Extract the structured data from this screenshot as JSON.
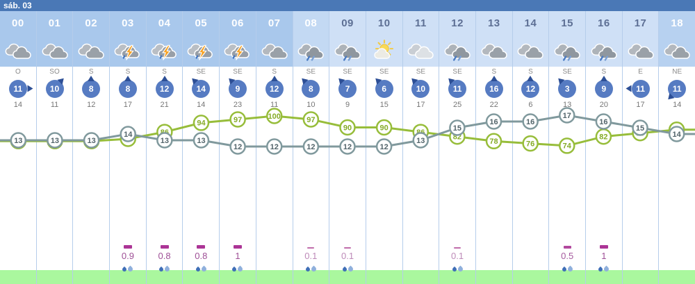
{
  "day_label": "sáb. 03",
  "colors": {
    "topbar": "#4a78b6",
    "col_dark": "#a9c8ec",
    "col_mid": "#c3d9f3",
    "col_light": "#cfe0f6",
    "col_dark2": "#b7d1f0",
    "hour_text_light_bg": "#5d6f94",
    "hour_text_dark_bg": "#ffffff",
    "wind_circle": "#567bc2",
    "probability_green": "#97bd3a",
    "temperature_gray": "#80999d",
    "precip_magenta": "#ac3596",
    "ground_green": "#aaf79e"
  },
  "columns": [
    {
      "hour": "00",
      "shade": "dark",
      "icon": "cloudy",
      "wind_dir": "O",
      "wind_speed": 11,
      "gust": 14,
      "precip": null
    },
    {
      "hour": "01",
      "shade": "dark",
      "icon": "cloudy",
      "wind_dir": "SO",
      "wind_speed": 10,
      "gust": 11,
      "precip": null
    },
    {
      "hour": "02",
      "shade": "dark",
      "icon": "cloudy",
      "wind_dir": "S",
      "wind_speed": 8,
      "gust": 12,
      "precip": null
    },
    {
      "hour": "03",
      "shade": "dark",
      "icon": "storm",
      "wind_dir": "S",
      "wind_speed": 8,
      "gust": 17,
      "precip": 0.9
    },
    {
      "hour": "04",
      "shade": "dark",
      "icon": "storm",
      "wind_dir": "S",
      "wind_speed": 12,
      "gust": 21,
      "precip": 0.8
    },
    {
      "hour": "05",
      "shade": "dark",
      "icon": "storm",
      "wind_dir": "SE",
      "wind_speed": 14,
      "gust": 14,
      "precip": 0.8
    },
    {
      "hour": "06",
      "shade": "dark",
      "icon": "storm",
      "wind_dir": "SE",
      "wind_speed": 9,
      "gust": 23,
      "precip": 1
    },
    {
      "hour": "07",
      "shade": "dark",
      "icon": "cloudy",
      "wind_dir": "S",
      "wind_speed": 12,
      "gust": 11,
      "precip": null
    },
    {
      "hour": "08",
      "shade": "mid",
      "icon": "rain",
      "wind_dir": "SE",
      "wind_speed": 8,
      "gust": 10,
      "precip": 0.1
    },
    {
      "hour": "09",
      "shade": "light",
      "icon": "rain",
      "wind_dir": "SE",
      "wind_speed": 7,
      "gust": 9,
      "precip": 0.1
    },
    {
      "hour": "10",
      "shade": "light",
      "icon": "sun-cloud",
      "wind_dir": "SE",
      "wind_speed": 6,
      "gust": 15,
      "precip": null
    },
    {
      "hour": "11",
      "shade": "light",
      "icon": "cloudy-light",
      "wind_dir": "SE",
      "wind_speed": 10,
      "gust": 17,
      "precip": null
    },
    {
      "hour": "12",
      "shade": "light",
      "icon": "rain",
      "wind_dir": "SE",
      "wind_speed": 11,
      "gust": 25,
      "precip": 0.1
    },
    {
      "hour": "13",
      "shade": "light",
      "icon": "cloudy",
      "wind_dir": "S",
      "wind_speed": 16,
      "gust": 22,
      "precip": null
    },
    {
      "hour": "14",
      "shade": "light",
      "icon": "cloudy",
      "wind_dir": "S",
      "wind_speed": 12,
      "gust": 6,
      "precip": null
    },
    {
      "hour": "15",
      "shade": "light",
      "icon": "rain",
      "wind_dir": "SE",
      "wind_speed": 3,
      "gust": 13,
      "precip": 0.5
    },
    {
      "hour": "16",
      "shade": "light",
      "icon": "rain",
      "wind_dir": "S",
      "wind_speed": 9,
      "gust": 20,
      "precip": 1
    },
    {
      "hour": "17",
      "shade": "light",
      "icon": "cloudy",
      "wind_dir": "E",
      "wind_speed": 11,
      "gust": 17,
      "precip": null
    },
    {
      "hour": "18",
      "shade": "dark2",
      "icon": "cloudy",
      "wind_dir": "NE",
      "wind_speed": 11,
      "gust": 14,
      "precip": null
    }
  ],
  "chart_data": {
    "type": "line",
    "x": [
      "00",
      "01",
      "02",
      "03",
      "04",
      "05",
      "06",
      "07",
      "08",
      "09",
      "10",
      "11",
      "12",
      "13",
      "14",
      "15",
      "16",
      "17",
      "18"
    ],
    "series": [
      {
        "name": "rain-probability-percent",
        "color": "#97bd3a",
        "values": [
          78,
          78,
          78,
          80,
          86,
          94,
          97,
          100,
          97,
          90,
          90,
          86,
          82,
          78,
          76,
          74,
          82,
          85,
          88
        ]
      },
      {
        "name": "temperature-celsius",
        "color": "#80999d",
        "values": [
          13,
          13,
          13,
          14,
          13,
          13,
          12,
          12,
          12,
          12,
          12,
          13,
          15,
          16,
          16,
          17,
          16,
          15,
          14
        ]
      }
    ],
    "legend": "none",
    "grid": "vertical-only",
    "note": "dual independent scales; values shown inside circular markers"
  }
}
